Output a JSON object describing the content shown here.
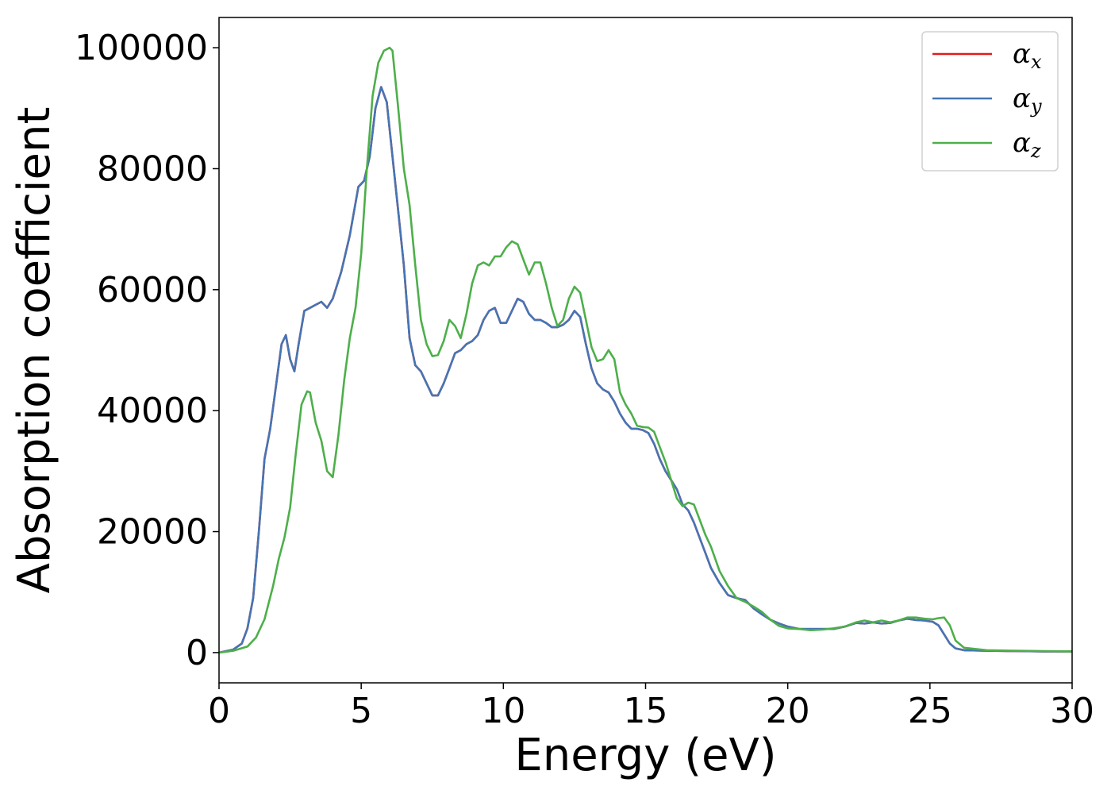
{
  "chart_data": {
    "type": "line",
    "title": "",
    "xlabel": "Energy (eV)",
    "ylabel": "Absorption coefficient",
    "xlim": [
      0,
      30
    ],
    "ylim": [
      -5000,
      105000
    ],
    "x_ticks": [
      0,
      5,
      10,
      15,
      20,
      25,
      30
    ],
    "y_ticks": [
      0,
      20000,
      40000,
      60000,
      80000,
      100000
    ],
    "grid": false,
    "legend_position": "top-right",
    "series": [
      {
        "name": "α",
        "subscript": "x",
        "color": "#e41a1c",
        "x": [
          0,
          0.5,
          0.8,
          1.0,
          1.2,
          1.4,
          1.6,
          1.8,
          2.0,
          2.2,
          2.35,
          2.5,
          2.65,
          2.8,
          3.0,
          3.2,
          3.4,
          3.6,
          3.8,
          4.0,
          4.3,
          4.6,
          4.9,
          5.1,
          5.3,
          5.5,
          5.7,
          5.9,
          6.1,
          6.3,
          6.5,
          6.7,
          6.9,
          7.1,
          7.3,
          7.5,
          7.7,
          7.9,
          8.1,
          8.3,
          8.5,
          8.7,
          8.9,
          9.1,
          9.3,
          9.5,
          9.7,
          9.9,
          10.1,
          10.3,
          10.5,
          10.7,
          10.9,
          11.1,
          11.3,
          11.5,
          11.7,
          11.9,
          12.1,
          12.3,
          12.5,
          12.7,
          12.9,
          13.1,
          13.3,
          13.5,
          13.7,
          13.9,
          14.1,
          14.3,
          14.5,
          14.7,
          14.9,
          15.1,
          15.3,
          15.5,
          15.7,
          15.9,
          16.1,
          16.3,
          16.5,
          16.7,
          16.9,
          17.1,
          17.3,
          17.6,
          17.9,
          18.2,
          18.5,
          18.8,
          19.1,
          19.4,
          19.7,
          20.0,
          20.4,
          20.8,
          21.2,
          21.6,
          22.0,
          22.4,
          22.7,
          23.0,
          23.3,
          23.6,
          23.9,
          24.2,
          24.5,
          24.8,
          25.1,
          25.3,
          25.5,
          25.7,
          25.9,
          26.2,
          27.0,
          28.0,
          29.0,
          30.0
        ],
        "y": [
          0,
          500,
          1500,
          4000,
          9000,
          20000,
          32000,
          37000,
          44000,
          51000,
          52500,
          48500,
          46500,
          51000,
          56500,
          57000,
          57500,
          58000,
          57000,
          58500,
          63000,
          69000,
          77000,
          78000,
          82000,
          90000,
          93500,
          91000,
          82000,
          73000,
          64000,
          52000,
          47500,
          46500,
          44500,
          42500,
          42500,
          44500,
          47000,
          49500,
          50000,
          51000,
          51500,
          52500,
          55000,
          56500,
          57000,
          54500,
          54500,
          56500,
          58500,
          58000,
          56000,
          55000,
          55000,
          54500,
          53800,
          53800,
          54200,
          55000,
          56500,
          55500,
          51000,
          47000,
          44500,
          43500,
          43000,
          41500,
          39500,
          38000,
          37000,
          37000,
          36800,
          36300,
          34500,
          32000,
          30000,
          28500,
          27000,
          24500,
          23500,
          21500,
          19000,
          16500,
          14000,
          11500,
          9500,
          9000,
          8700,
          7300,
          6300,
          5400,
          4800,
          4300,
          3900,
          3900,
          3900,
          3900,
          4300,
          4900,
          4800,
          5000,
          4800,
          4900,
          5300,
          5600,
          5400,
          5300,
          5100,
          4500,
          3000,
          1500,
          700,
          400,
          300,
          250,
          200,
          200
        ]
      },
      {
        "name": "α",
        "subscript": "y",
        "color": "#4575b4",
        "x": [
          0,
          0.5,
          0.8,
          1.0,
          1.2,
          1.4,
          1.6,
          1.8,
          2.0,
          2.2,
          2.35,
          2.5,
          2.65,
          2.8,
          3.0,
          3.2,
          3.4,
          3.6,
          3.8,
          4.0,
          4.3,
          4.6,
          4.9,
          5.1,
          5.3,
          5.5,
          5.7,
          5.9,
          6.1,
          6.3,
          6.5,
          6.7,
          6.9,
          7.1,
          7.3,
          7.5,
          7.7,
          7.9,
          8.1,
          8.3,
          8.5,
          8.7,
          8.9,
          9.1,
          9.3,
          9.5,
          9.7,
          9.9,
          10.1,
          10.3,
          10.5,
          10.7,
          10.9,
          11.1,
          11.3,
          11.5,
          11.7,
          11.9,
          12.1,
          12.3,
          12.5,
          12.7,
          12.9,
          13.1,
          13.3,
          13.5,
          13.7,
          13.9,
          14.1,
          14.3,
          14.5,
          14.7,
          14.9,
          15.1,
          15.3,
          15.5,
          15.7,
          15.9,
          16.1,
          16.3,
          16.5,
          16.7,
          16.9,
          17.1,
          17.3,
          17.6,
          17.9,
          18.2,
          18.5,
          18.8,
          19.1,
          19.4,
          19.7,
          20.0,
          20.4,
          20.8,
          21.2,
          21.6,
          22.0,
          22.4,
          22.7,
          23.0,
          23.3,
          23.6,
          23.9,
          24.2,
          24.5,
          24.8,
          25.1,
          25.3,
          25.5,
          25.7,
          25.9,
          26.2,
          27.0,
          28.0,
          29.0,
          30.0
        ],
        "y": [
          0,
          500,
          1500,
          4000,
          9000,
          20000,
          32000,
          37000,
          44000,
          51000,
          52500,
          48500,
          46500,
          51000,
          56500,
          57000,
          57500,
          58000,
          57000,
          58500,
          63000,
          69000,
          77000,
          78000,
          82000,
          90000,
          93500,
          91000,
          82000,
          73000,
          64000,
          52000,
          47500,
          46500,
          44500,
          42500,
          42500,
          44500,
          47000,
          49500,
          50000,
          51000,
          51500,
          52500,
          55000,
          56500,
          57000,
          54500,
          54500,
          56500,
          58500,
          58000,
          56000,
          55000,
          55000,
          54500,
          53800,
          53800,
          54200,
          55000,
          56500,
          55500,
          51000,
          47000,
          44500,
          43500,
          43000,
          41500,
          39500,
          38000,
          37000,
          37000,
          36800,
          36300,
          34500,
          32000,
          30000,
          28500,
          27000,
          24500,
          23500,
          21500,
          19000,
          16500,
          14000,
          11500,
          9500,
          9000,
          8700,
          7300,
          6300,
          5400,
          4800,
          4300,
          3900,
          3900,
          3900,
          3900,
          4300,
          4900,
          4800,
          5000,
          4800,
          4900,
          5300,
          5600,
          5400,
          5300,
          5100,
          4500,
          3000,
          1500,
          700,
          400,
          300,
          250,
          200,
          200
        ]
      },
      {
        "name": "α",
        "subscript": "z",
        "color": "#4daf4a",
        "x": [
          0,
          0.5,
          1.0,
          1.3,
          1.6,
          1.9,
          2.1,
          2.3,
          2.5,
          2.7,
          2.9,
          3.1,
          3.2,
          3.4,
          3.6,
          3.8,
          4.0,
          4.2,
          4.4,
          4.6,
          4.8,
          5.0,
          5.2,
          5.4,
          5.6,
          5.8,
          6.0,
          6.1,
          6.3,
          6.5,
          6.7,
          6.9,
          7.1,
          7.3,
          7.5,
          7.7,
          7.9,
          8.1,
          8.3,
          8.5,
          8.7,
          8.9,
          9.1,
          9.3,
          9.5,
          9.7,
          9.9,
          10.1,
          10.3,
          10.5,
          10.7,
          10.9,
          11.1,
          11.3,
          11.5,
          11.7,
          11.9,
          12.1,
          12.3,
          12.5,
          12.7,
          12.9,
          13.1,
          13.3,
          13.5,
          13.7,
          13.9,
          14.1,
          14.3,
          14.5,
          14.7,
          14.9,
          15.1,
          15.3,
          15.5,
          15.7,
          15.9,
          16.1,
          16.3,
          16.5,
          16.7,
          16.9,
          17.1,
          17.3,
          17.6,
          17.9,
          18.2,
          18.5,
          18.8,
          19.1,
          19.4,
          19.7,
          20.0,
          20.4,
          20.8,
          21.2,
          21.6,
          22.0,
          22.4,
          22.7,
          23.0,
          23.3,
          23.6,
          23.9,
          24.2,
          24.5,
          24.8,
          25.1,
          25.3,
          25.5,
          25.7,
          25.9,
          26.2,
          27.0,
          28.0,
          29.0,
          30.0
        ],
        "y": [
          0,
          300,
          1000,
          2500,
          5500,
          11000,
          15500,
          19000,
          24000,
          33000,
          41000,
          43200,
          43000,
          38000,
          35000,
          30000,
          29000,
          36000,
          45000,
          52000,
          57000,
          66000,
          80000,
          92000,
          97500,
          99500,
          100000,
          99500,
          90000,
          80000,
          74000,
          64000,
          55000,
          51000,
          49000,
          49200,
          51500,
          55000,
          54000,
          52000,
          56000,
          61000,
          64000,
          64500,
          64000,
          65500,
          65500,
          67000,
          68000,
          67500,
          65000,
          62500,
          64500,
          64500,
          61000,
          57000,
          54000,
          55000,
          58500,
          60500,
          59500,
          55000,
          50500,
          48200,
          48500,
          50000,
          48500,
          43000,
          41000,
          39500,
          37500,
          37300,
          37200,
          36500,
          34000,
          31500,
          28500,
          25500,
          24200,
          24800,
          24500,
          22000,
          19500,
          17500,
          13500,
          11000,
          9000,
          8400,
          7600,
          6700,
          5400,
          4400,
          4000,
          3900,
          3700,
          3800,
          4000,
          4300,
          5000,
          5300,
          5000,
          5300,
          5000,
          5300,
          5800,
          5800,
          5600,
          5500,
          5700,
          5800,
          4500,
          2000,
          800,
          400,
          300,
          250,
          200
        ]
      }
    ]
  }
}
